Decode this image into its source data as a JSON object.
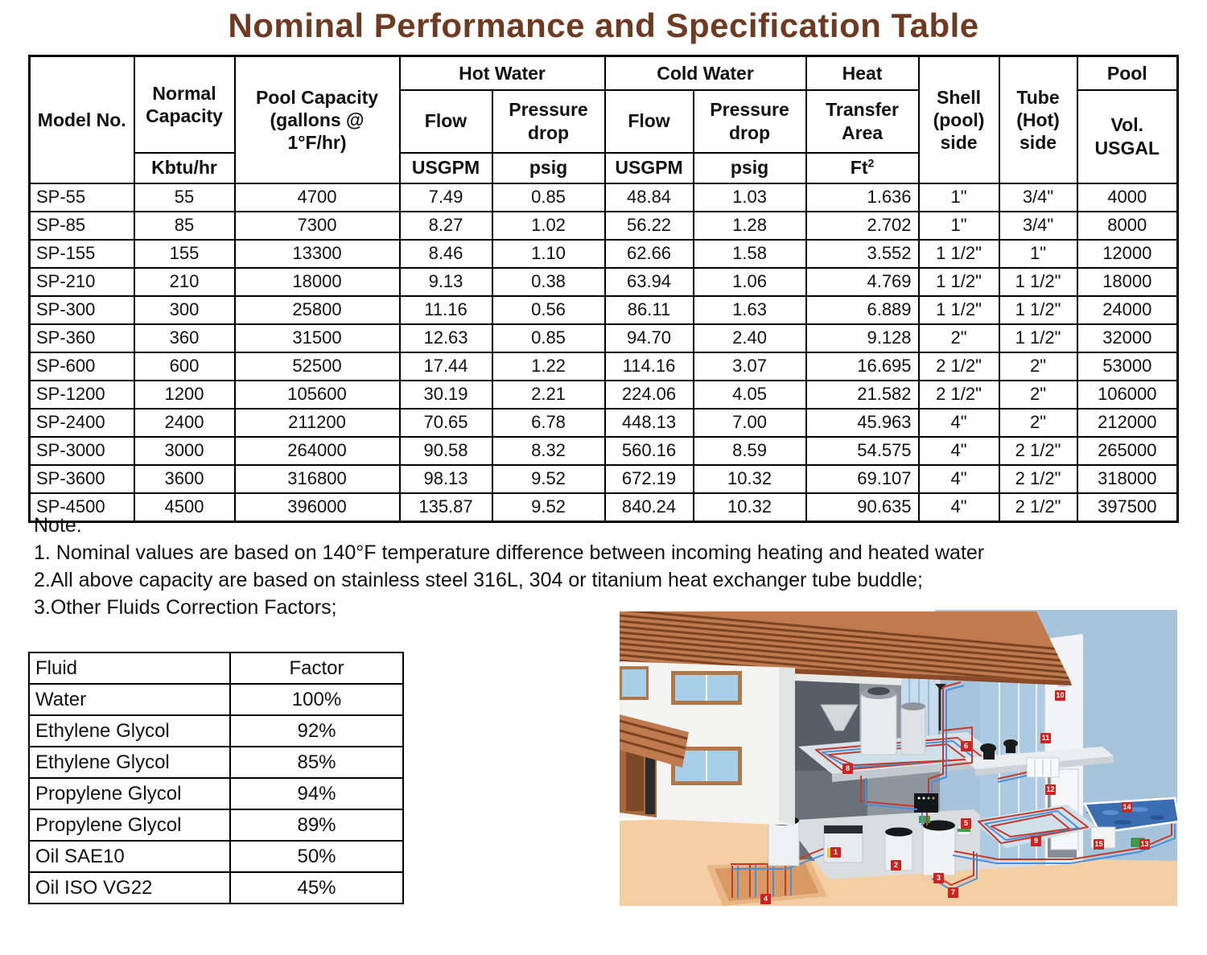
{
  "title": "Nominal Performance and Specification Table",
  "spec_table": {
    "headers": {
      "model": "Model No.",
      "normal_capacity": "Normal Capacity",
      "normal_capacity_unit": "Kbtu/hr",
      "pool_capacity": "Pool Capacity (gallons @ 1°F/hr)",
      "hot_water": "Hot Water",
      "cold_water": "Cold Water",
      "flow": "Flow",
      "pressure_drop": "Pressure drop",
      "flow_unit": "USGPM",
      "pressure_unit": "psig",
      "heat": "Heat",
      "heat_transfer_area": "Transfer Area",
      "heat_unit_base": "Ft",
      "heat_unit_sup": "2",
      "shell_side": "Shell (pool) side",
      "tube_side": "Tube (Hot) side",
      "pool": "Pool",
      "pool_vol": "Vol. USGAL"
    },
    "rows": [
      [
        "SP-55",
        "55",
        "4700",
        "7.49",
        "0.85",
        "48.84",
        "1.03",
        "1.636",
        "1\"",
        "3/4\"",
        "4000"
      ],
      [
        "SP-85",
        "85",
        "7300",
        "8.27",
        "1.02",
        "56.22",
        "1.28",
        "2.702",
        "1\"",
        "3/4\"",
        "8000"
      ],
      [
        "SP-155",
        "155",
        "13300",
        "8.46",
        "1.10",
        "62.66",
        "1.58",
        "3.552",
        "1 1/2\"",
        "1\"",
        "12000"
      ],
      [
        "SP-210",
        "210",
        "18000",
        "9.13",
        "0.38",
        "63.94",
        "1.06",
        "4.769",
        "1 1/2\"",
        "1 1/2\"",
        "18000"
      ],
      [
        "SP-300",
        "300",
        "25800",
        "11.16",
        "0.56",
        "86.11",
        "1.63",
        "6.889",
        "1 1/2\"",
        "1 1/2\"",
        "24000"
      ],
      [
        "SP-360",
        "360",
        "31500",
        "12.63",
        "0.85",
        "94.70",
        "2.40",
        "9.128",
        "2\"",
        "1 1/2\"",
        "32000"
      ],
      [
        "SP-600",
        "600",
        "52500",
        "17.44",
        "1.22",
        "114.16",
        "3.07",
        "16.695",
        "2 1/2\"",
        "2\"",
        "53000"
      ],
      [
        "SP-1200",
        "1200",
        "105600",
        "30.19",
        "2.21",
        "224.06",
        "4.05",
        "21.582",
        "2 1/2\"",
        "2\"",
        "106000"
      ],
      [
        "SP-2400",
        "2400",
        "211200",
        "70.65",
        "6.78",
        "448.13",
        "7.00",
        "45.963",
        "4\"",
        "2\"",
        "212000"
      ],
      [
        "SP-3000",
        "3000",
        "264000",
        "90.58",
        "8.32",
        "560.16",
        "8.59",
        "54.575",
        "4\"",
        "2 1/2\"",
        "265000"
      ],
      [
        "SP-3600",
        "3600",
        "316800",
        "98.13",
        "9.52",
        "672.19",
        "10.32",
        "69.107",
        "4\"",
        "2 1/2\"",
        "318000"
      ],
      [
        "SP-4500",
        "4500",
        "396000",
        "135.87",
        "9.52",
        "840.24",
        "10.32",
        "90.635",
        "4\"",
        "2 1/2\"",
        "397500"
      ]
    ]
  },
  "notes": {
    "title": "Note:",
    "items": [
      "1. Nominal values are based on 140°F temperature difference between incoming heating and heated water",
      "2.All above capacity are based on stainless steel 316L, 304 or titanium heat exchanger tube buddle;",
      "3.Other Fluids Correction Factors;"
    ]
  },
  "fluid_table": {
    "headers": {
      "fluid": "Fluid",
      "factor": "Factor"
    },
    "rows": [
      [
        "Water",
        "100%"
      ],
      [
        "Ethylene Glycol",
        "92%"
      ],
      [
        "Ethylene Glycol",
        "85%"
      ],
      [
        "Propylene Glycol",
        "94%"
      ],
      [
        "Propylene Glycol",
        "89%"
      ],
      [
        "Oil SAE10",
        "50%"
      ],
      [
        "Oil ISO VG22",
        "45%"
      ]
    ]
  },
  "illustration": {
    "description": "Cutaway house with hydronic heating system: rooftop, radiant floor coils, storage tanks, controller, ground loop and swimming pool piping",
    "callouts": [
      "1",
      "2",
      "3",
      "4",
      "5",
      "6",
      "7",
      "8",
      "9",
      "10",
      "11",
      "12",
      "13",
      "14",
      "15"
    ]
  },
  "colors": {
    "title_brown": "#6e3a21",
    "pipe_red": "#c23b2a",
    "pipe_blue": "#4d8fd6",
    "roof_brown": "#c07a4e",
    "sky_blue": "#a6c4dc",
    "ground_peach": "#f4cfa4",
    "pool_blue": "#3a6db2",
    "callout_red": "#cc2420",
    "table_border": "#000000"
  }
}
